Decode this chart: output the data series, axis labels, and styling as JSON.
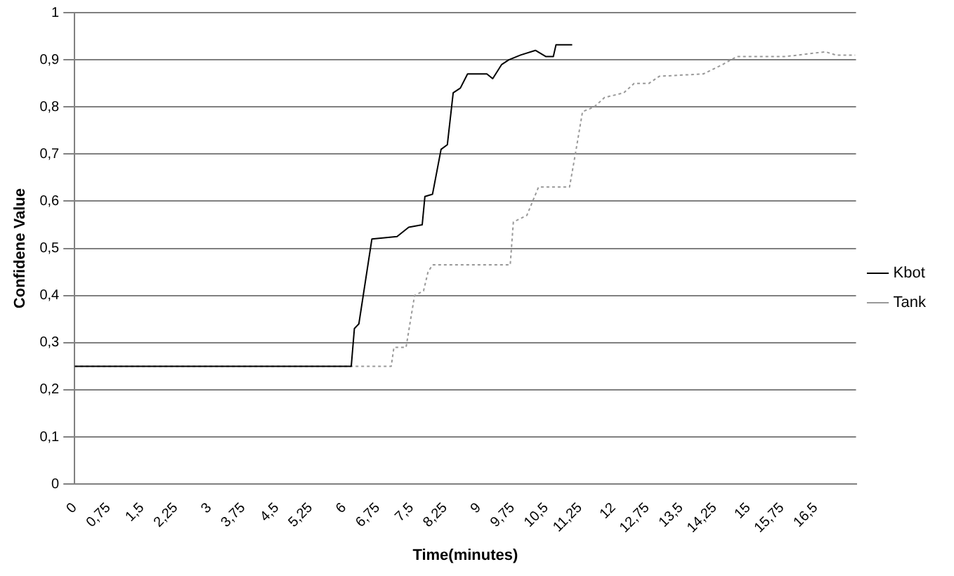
{
  "chart_data": {
    "type": "line",
    "xlabel": "Time(minutes)",
    "ylabel": "Confidene Value",
    "xlim": [
      0,
      17.4
    ],
    "xticks": [
      0,
      {
        "value": 0.75,
        "label": "0,75"
      },
      {
        "value": 1.5,
        "label": "1,5"
      },
      {
        "value": 2.25,
        "label": "2,25"
      },
      3,
      {
        "value": 3.75,
        "label": "3,75"
      },
      {
        "value": 4.5,
        "label": "4,5"
      },
      {
        "value": 5.25,
        "label": "5,25"
      },
      6,
      {
        "value": 6.75,
        "label": "6,75"
      },
      {
        "value": 7.5,
        "label": "7,5"
      },
      {
        "value": 8.25,
        "label": "8,25"
      },
      9,
      {
        "value": 9.75,
        "label": "9,75"
      },
      {
        "value": 10.5,
        "label": "10,5"
      },
      {
        "value": 11.25,
        "label": "11,25"
      },
      12,
      {
        "value": 12.75,
        "label": "12,75"
      },
      {
        "value": 13.5,
        "label": "13,5"
      },
      {
        "value": 14.25,
        "label": "14,25"
      },
      15,
      {
        "value": 15.75,
        "label": "15,75"
      },
      {
        "value": 16.5,
        "label": "16,5"
      }
    ],
    "ylim": [
      0,
      1
    ],
    "yticks": [
      0,
      {
        "value": 0.1,
        "label": "0,1"
      },
      {
        "value": 0.2,
        "label": "0,2"
      },
      {
        "value": 0.3,
        "label": "0,3"
      },
      {
        "value": 0.4,
        "label": "0,4"
      },
      {
        "value": 0.5,
        "label": "0,5"
      },
      {
        "value": 0.6,
        "label": "0,6"
      },
      {
        "value": 0.7,
        "label": "0,7"
      },
      {
        "value": 0.8,
        "label": "0,8"
      },
      {
        "value": 0.9,
        "label": "0,9"
      },
      1
    ],
    "grid": "y",
    "legend": "right",
    "marker": "none",
    "series": [
      {
        "name": "Kbot",
        "color": "#000000",
        "line_style": "solid",
        "x": [
          0,
          6.16,
          6.23,
          6.33,
          6.62,
          7.18,
          7.44,
          7.74,
          7.8,
          7.97,
          8.16,
          8.3,
          8.43,
          8.59,
          8.75,
          9.18,
          9.31,
          9.51,
          9.67,
          9.93,
          10.26,
          10.49,
          10.66,
          10.72,
          11.08
        ],
        "values": [
          0.25,
          0.25,
          0.33,
          0.34,
          0.52,
          0.525,
          0.545,
          0.55,
          0.61,
          0.615,
          0.71,
          0.72,
          0.83,
          0.84,
          0.87,
          0.87,
          0.86,
          0.89,
          0.9,
          0.91,
          0.92,
          0.907,
          0.907,
          0.932,
          0.932
        ]
      },
      {
        "name": "Tank",
        "color": "#999999",
        "line_style": "dotted",
        "x": [
          0,
          7.05,
          7.11,
          7.38,
          7.57,
          7.77,
          7.87,
          7.97,
          9.7,
          9.77,
          10.07,
          10.33,
          11.02,
          11.15,
          11.31,
          11.57,
          11.8,
          12.23,
          12.46,
          12.79,
          13.02,
          14.0,
          14.43,
          14.75,
          15.84,
          16.72,
          16.95,
          17.38
        ],
        "values": [
          0.25,
          0.25,
          0.29,
          0.29,
          0.4,
          0.41,
          0.45,
          0.465,
          0.465,
          0.556,
          0.57,
          0.63,
          0.63,
          0.7,
          0.79,
          0.8,
          0.82,
          0.83,
          0.85,
          0.85,
          0.865,
          0.87,
          0.89,
          0.907,
          0.907,
          0.917,
          0.91,
          0.91
        ]
      }
    ]
  }
}
